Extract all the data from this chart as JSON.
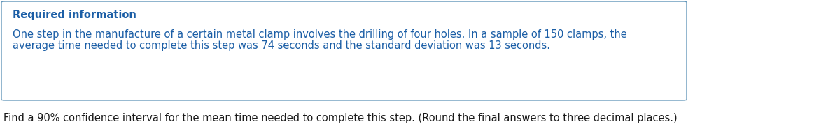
{
  "box_title": "Required information",
  "box_title_color": "#1b5ea6",
  "box_body_line1": "One step in the manufacture of a certain metal clamp involves the drilling of four holes. In a sample of 150 clamps, the",
  "box_body_line2": "average time needed to complete this step was 74 seconds and the standard deviation was 13 seconds.",
  "box_text_color": "#1b5ea6",
  "box_border_color": "#6699bb",
  "box_bg_color": "#ffffff",
  "footer_text": "Find a 90% confidence interval for the mean time needed to complete this step. (Round the final answers to three decimal places.)",
  "footer_text_color": "#1a1a1a",
  "background_color": "#ffffff",
  "title_fontsize": 10.5,
  "body_fontsize": 10.5,
  "footer_fontsize": 10.5
}
